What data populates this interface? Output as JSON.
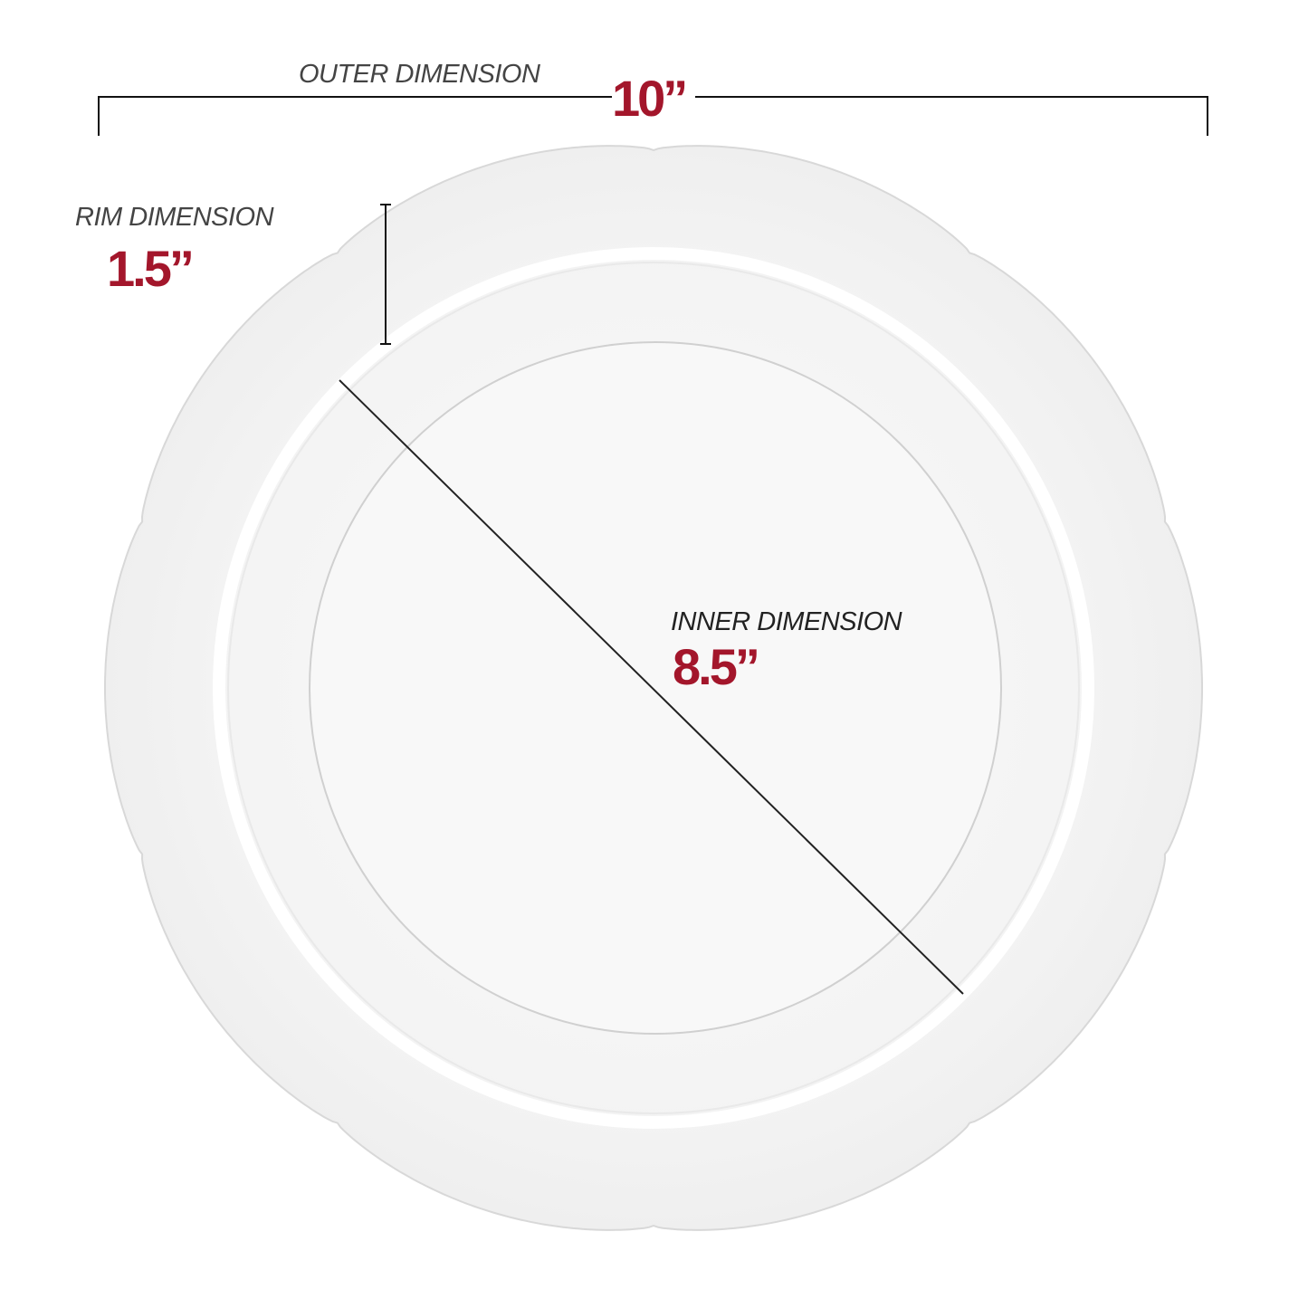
{
  "outer": {
    "label": "OUTER DIMENSION",
    "value": "10”"
  },
  "rim": {
    "label": "RIM DIMENSION",
    "value": "1.5”"
  },
  "inner": {
    "label": "INNER DIMENSION",
    "value": "8.5”"
  },
  "colors": {
    "accent": "#a3162b",
    "label": "#444444",
    "line": "#111111"
  }
}
